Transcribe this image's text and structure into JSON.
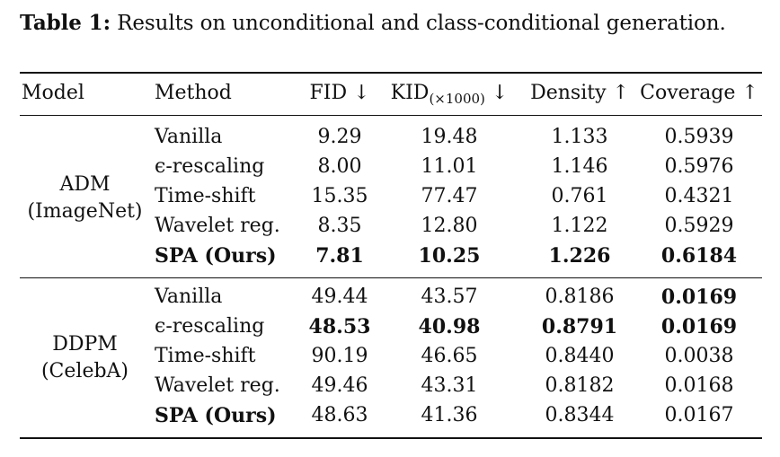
{
  "caption": {
    "label": "Table 1:",
    "text": "Results on unconditional and class-conditional generation."
  },
  "header": {
    "model": "Model",
    "method": "Method",
    "fid": "FID ↓",
    "kid_main": "KID",
    "kid_sub": "(×1000)",
    "kid_arrow": " ↓",
    "density": "Density ↑",
    "coverage": "Coverage ↑"
  },
  "groups": [
    {
      "model_line1": "ADM",
      "model_line2": "(ImageNet)",
      "rows": [
        {
          "method": "Vanilla",
          "fid": "9.29",
          "kid": "19.48",
          "density": "1.133",
          "coverage": "0.5939",
          "bold": [
            false,
            false,
            false,
            false,
            false
          ]
        },
        {
          "method": "ϵ-rescaling",
          "fid": "8.00",
          "kid": "11.01",
          "density": "1.146",
          "coverage": "0.5976",
          "bold": [
            false,
            false,
            false,
            false,
            false
          ]
        },
        {
          "method": "Time-shift",
          "fid": "15.35",
          "kid": "77.47",
          "density": "0.761",
          "coverage": "0.4321",
          "bold": [
            false,
            false,
            false,
            false,
            false
          ]
        },
        {
          "method": "Wavelet reg.",
          "fid": "8.35",
          "kid": "12.80",
          "density": "1.122",
          "coverage": "0.5929",
          "bold": [
            false,
            false,
            false,
            false,
            false
          ]
        },
        {
          "method": "SPA (Ours)",
          "fid": "7.81",
          "kid": "10.25",
          "density": "1.226",
          "coverage": "0.6184",
          "bold": [
            true,
            true,
            true,
            true,
            true
          ]
        }
      ]
    },
    {
      "model_line1": "DDPM",
      "model_line2": "(CelebA)",
      "rows": [
        {
          "method": "Vanilla",
          "fid": "49.44",
          "kid": "43.57",
          "density": "0.8186",
          "coverage": "0.0169",
          "bold": [
            false,
            false,
            false,
            false,
            true
          ]
        },
        {
          "method": "ϵ-rescaling",
          "fid": "48.53",
          "kid": "40.98",
          "density": "0.8791",
          "coverage": "0.0169",
          "bold": [
            false,
            true,
            true,
            true,
            true
          ]
        },
        {
          "method": "Time-shift",
          "fid": "90.19",
          "kid": "46.65",
          "density": "0.8440",
          "coverage": "0.0038",
          "bold": [
            false,
            false,
            false,
            false,
            false
          ]
        },
        {
          "method": "Wavelet reg.",
          "fid": "49.46",
          "kid": "43.31",
          "density": "0.8182",
          "coverage": "0.0168",
          "bold": [
            false,
            false,
            false,
            false,
            false
          ]
        },
        {
          "method": "SPA (Ours)",
          "fid": "48.63",
          "kid": "41.36",
          "density": "0.8344",
          "coverage": "0.0167",
          "bold": [
            true,
            false,
            false,
            false,
            false
          ]
        }
      ]
    }
  ]
}
